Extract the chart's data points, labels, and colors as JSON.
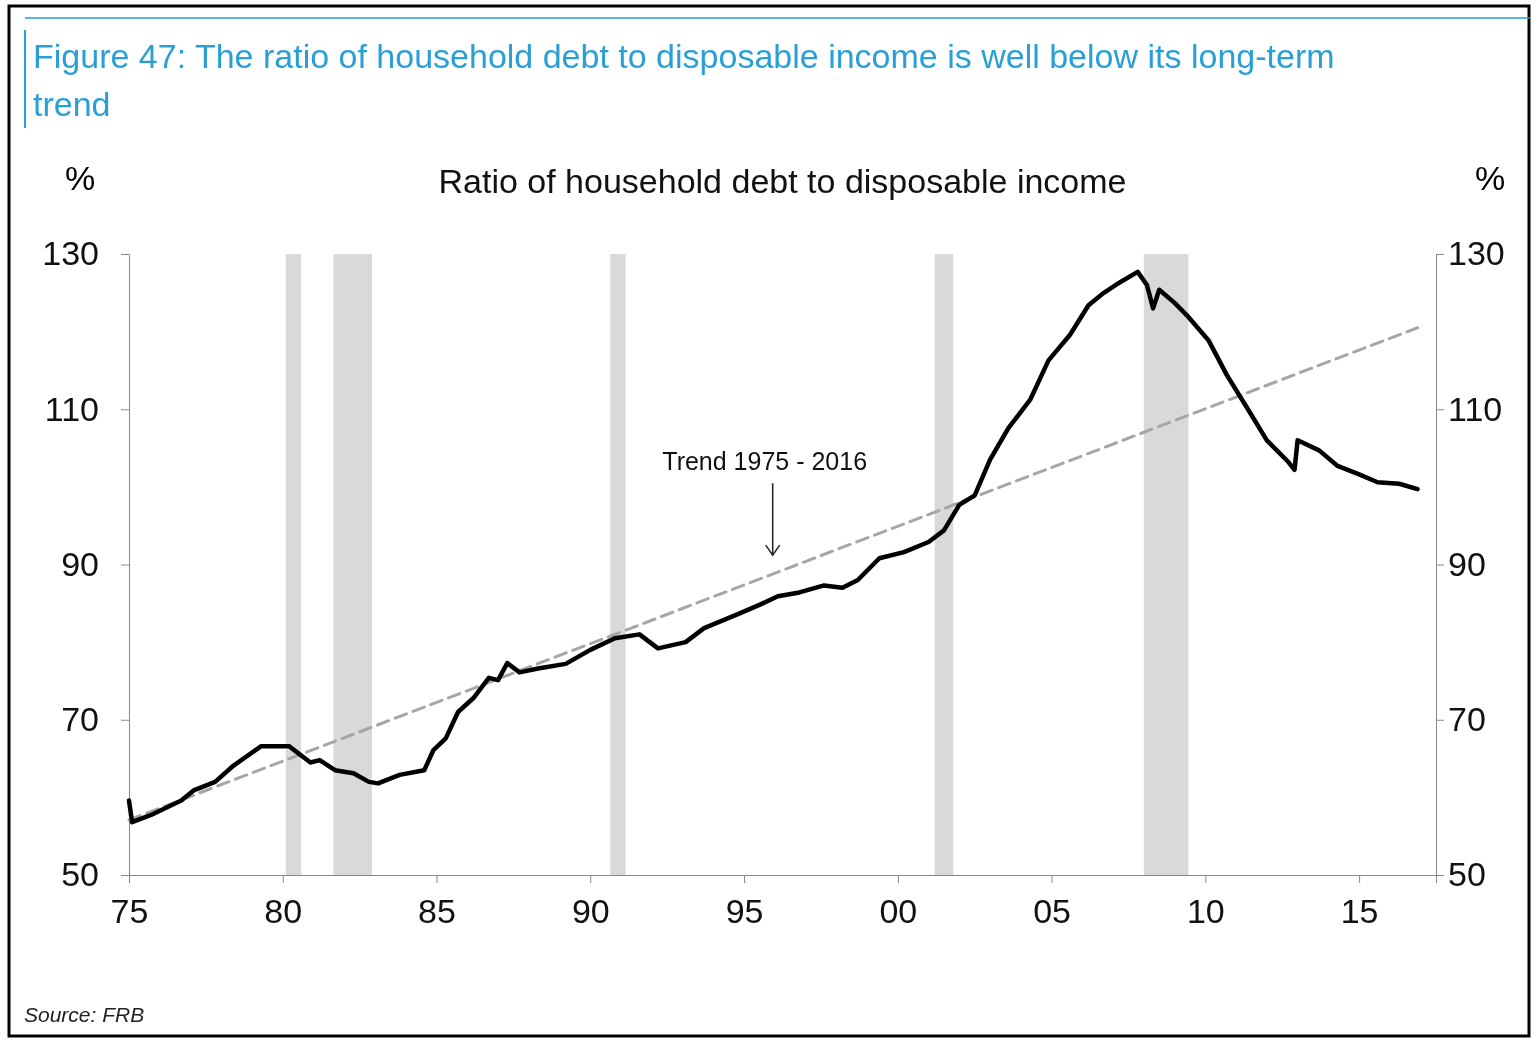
{
  "chart_data": {
    "type": "line",
    "title": "Figure 47: The ratio of household debt to disposable income is well below its long-term trend",
    "subtitle": "Ratio of household debt to disposable income",
    "ylabel": "%",
    "y2label": "%",
    "xlim": [
      1975,
      2017.5
    ],
    "xticks": [
      {
        "value": 1975,
        "label": "75"
      },
      {
        "value": 1980,
        "label": "80"
      },
      {
        "value": 1985,
        "label": "85"
      },
      {
        "value": 1990,
        "label": "90"
      },
      {
        "value": 1995,
        "label": "95"
      },
      {
        "value": 2000,
        "label": "00"
      },
      {
        "value": 2005,
        "label": "05"
      },
      {
        "value": 2010,
        "label": "10"
      },
      {
        "value": 2015,
        "label": "15"
      }
    ],
    "ylim": [
      50,
      130
    ],
    "yticks": [
      50,
      70,
      90,
      110,
      130
    ],
    "y2lim": [
      50,
      130
    ],
    "y2ticks": [
      50,
      70,
      90,
      110,
      130
    ],
    "grid": false,
    "marker": "none",
    "series": [
      {
        "color": "#000000",
        "line_style": "solid",
        "x": [
          1975.0,
          1975.1,
          1975.7,
          1976.7,
          1977.1,
          1977.8,
          1978.4,
          1979.3,
          1980.2,
          1980.9,
          1981.2,
          1981.7,
          1982.3,
          1982.8,
          1983.1,
          1983.8,
          1984.6,
          1984.9,
          1985.3,
          1985.7,
          1986.2,
          1986.7,
          1987.0,
          1987.3,
          1987.7,
          1988.3,
          1989.2,
          1990.0,
          1990.8,
          1991.6,
          1992.2,
          1993.1,
          1993.7,
          1994.8,
          1995.5,
          1996.1,
          1996.8,
          1997.6,
          1998.2,
          1998.7,
          1999.4,
          2000.2,
          2001.0,
          2001.5,
          2002.0,
          2002.5,
          2003.0,
          2003.6,
          2004.3,
          2004.9,
          2005.6,
          2006.2,
          2006.7,
          2007.2,
          2007.8,
          2008.1,
          2008.3,
          2008.5,
          2009.0,
          2009.4,
          2010.1,
          2010.7,
          2011.4,
          2012.0,
          2012.7,
          2012.9,
          2013.0,
          2013.7,
          2014.3,
          2015.0,
          2015.6,
          2016.3,
          2016.9
        ],
        "values": [
          59.6,
          56.8,
          57.7,
          59.6,
          60.9,
          62.0,
          64.1,
          66.6,
          66.6,
          64.5,
          64.8,
          63.5,
          63.1,
          62.0,
          61.8,
          62.9,
          63.5,
          66.1,
          67.6,
          71.0,
          72.8,
          75.4,
          75.1,
          77.3,
          76.1,
          76.6,
          77.2,
          79.0,
          80.5,
          81.0,
          79.2,
          80.0,
          81.8,
          83.6,
          84.8,
          85.9,
          86.4,
          87.3,
          87.0,
          88.0,
          90.8,
          91.6,
          92.9,
          94.4,
          97.7,
          98.9,
          103.5,
          107.6,
          111.2,
          116.3,
          119.6,
          123.4,
          125.0,
          126.3,
          127.7,
          126.0,
          123.0,
          125.4,
          123.7,
          122.1,
          118.9,
          114.4,
          109.9,
          106.0,
          103.2,
          102.2,
          106.0,
          104.7,
          102.7,
          101.6,
          100.6,
          100.4,
          99.7
        ]
      },
      {
        "color": "#a6a6a6",
        "line_style": "dashed",
        "x": [
          1975,
          2016.9
        ],
        "values": [
          57.1,
          120.5
        ]
      }
    ],
    "bands": [
      {
        "axis": "x",
        "from": 1980.1,
        "to": 1980.6,
        "color": "#d9d9d9"
      },
      {
        "axis": "x",
        "from": 1981.65,
        "to": 1982.9,
        "color": "#d9d9d9"
      },
      {
        "axis": "x",
        "from": 1990.65,
        "to": 1991.15,
        "color": "#d9d9d9"
      },
      {
        "axis": "x",
        "from": 2001.2,
        "to": 2001.8,
        "color": "#d9d9d9"
      },
      {
        "axis": "x",
        "from": 2008.0,
        "to": 2009.45,
        "color": "#d9d9d9"
      }
    ],
    "annotations": [
      "Trend 1975 - 2016",
      "Source: FRB"
    ]
  }
}
